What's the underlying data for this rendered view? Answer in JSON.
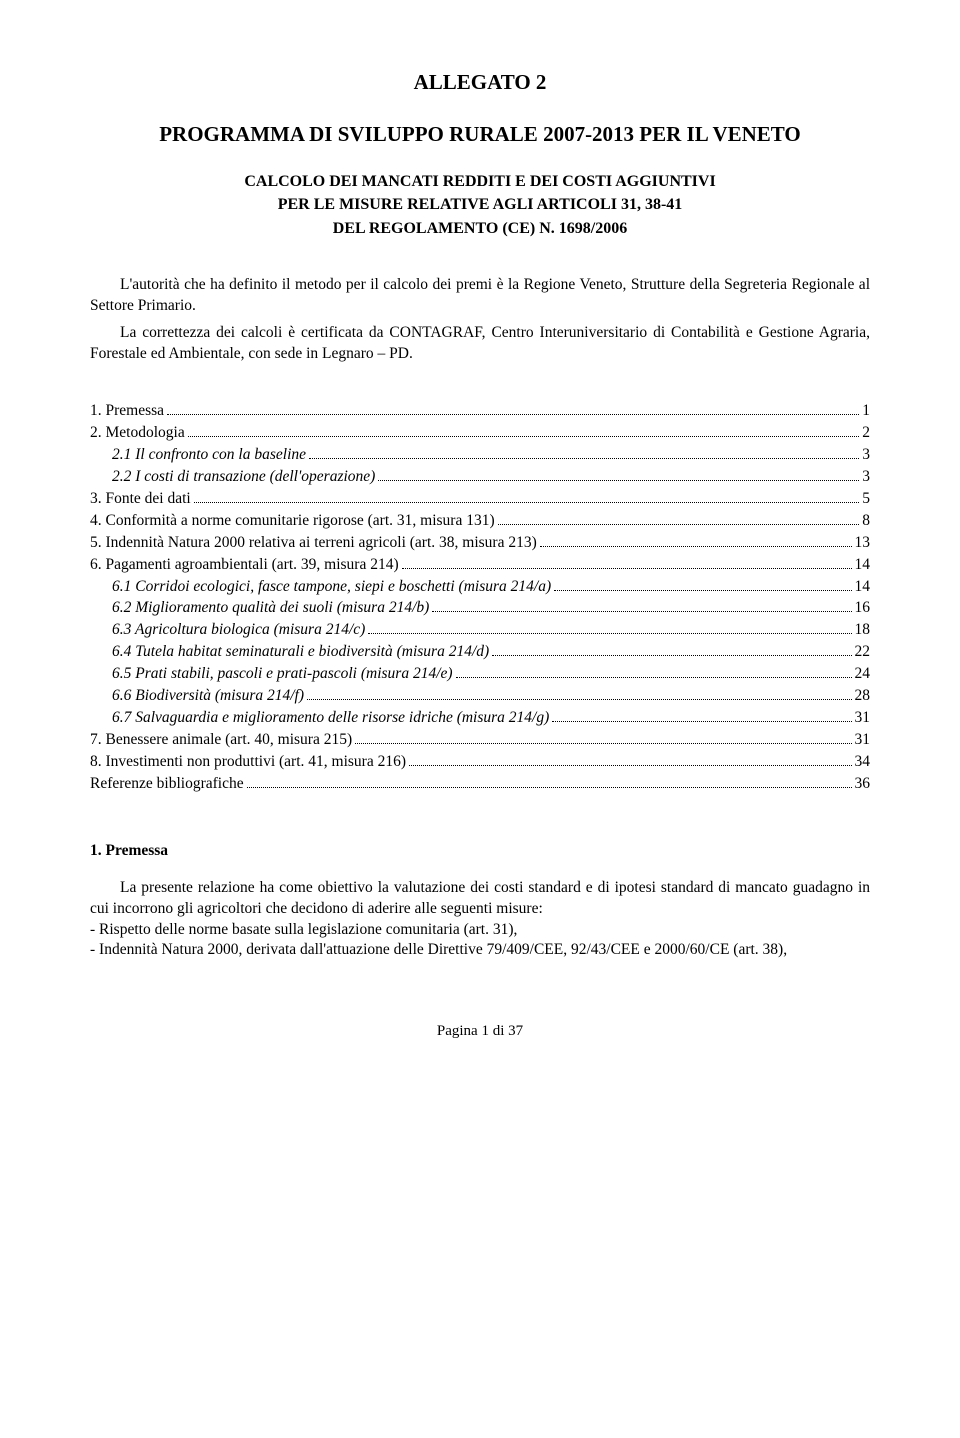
{
  "heading": {
    "allegato": "ALLEGATO 2",
    "programma": "PROGRAMMA DI SVILUPPO RURALE 2007-2013 PER IL VENETO",
    "calc_line1": "CALCOLO DEI MANCATI REDDITI E DEI COSTI AGGIUNTIVI",
    "calc_line2": "PER LE MISURE RELATIVE AGLI ARTICOLI 31, 38-41",
    "calc_line3": "DEL REGOLAMENTO (CE) N. 1698/2006"
  },
  "intro": {
    "p1": "L'autorità che ha definito il metodo per il calcolo dei premi è la Regione Veneto, Strutture della Segreteria Regionale al Settore Primario.",
    "p2": "La correttezza dei calcoli è certificata da CONTAGRAF, Centro Interuniversitario di Contabilità e Gestione Agraria, Forestale ed Ambientale, con sede in Legnaro – PD."
  },
  "toc": [
    {
      "label": "1. Premessa",
      "page": "1",
      "italic": false,
      "indent": 0
    },
    {
      "label": "2. Metodologia",
      "page": "2",
      "italic": false,
      "indent": 0
    },
    {
      "label": "2.1 Il confronto con la baseline",
      "page": "3",
      "italic": true,
      "indent": 1
    },
    {
      "label": "2.2 I costi di transazione (dell'operazione)",
      "page": "3",
      "italic": true,
      "indent": 1
    },
    {
      "label": "3. Fonte dei dati",
      "page": "5",
      "italic": false,
      "indent": 0
    },
    {
      "label": "4. Conformità a norme comunitarie rigorose (art. 31, misura 131)",
      "page": "8",
      "italic": false,
      "indent": 0
    },
    {
      "label": "5. Indennità Natura 2000 relativa ai terreni agricoli (art. 38, misura 213)",
      "page": "13",
      "italic": false,
      "indent": 0
    },
    {
      "label": "6. Pagamenti agroambientali (art. 39, misura 214)",
      "page": "14",
      "italic": false,
      "indent": 0
    },
    {
      "label": "6.1 Corridoi ecologici, fasce tampone, siepi e boschetti (misura 214/a)",
      "page": "14",
      "italic": true,
      "indent": 1
    },
    {
      "label": "6.2 Miglioramento qualità dei suoli (misura 214/b)",
      "page": "16",
      "italic": true,
      "indent": 1
    },
    {
      "label": "6.3 Agricoltura biologica (misura 214/c)",
      "page": "18",
      "italic": true,
      "indent": 1
    },
    {
      "label": "6.4 Tutela habitat seminaturali e biodiversità (misura 214/d)",
      "page": "22",
      "italic": true,
      "indent": 1
    },
    {
      "label": "6.5 Prati stabili, pascoli e prati-pascoli (misura 214/e)",
      "page": "24",
      "italic": true,
      "indent": 1
    },
    {
      "label": "6.6 Biodiversità (misura 214/f)",
      "page": "28",
      "italic": true,
      "indent": 1
    },
    {
      "label": "6.7 Salvaguardia e miglioramento delle risorse idriche (misura 214/g)",
      "page": "31",
      "italic": true,
      "indent": 1
    },
    {
      "label": "7. Benessere animale (art. 40, misura 215)",
      "page": "31",
      "italic": false,
      "indent": 0
    },
    {
      "label": "8. Investimenti non produttivi (art. 41, misura 216)",
      "page": "34",
      "italic": false,
      "indent": 0
    },
    {
      "label": "Referenze bibliografiche",
      "page": "36",
      "italic": false,
      "indent": 0
    }
  ],
  "section1": {
    "heading": "1. Premessa",
    "p1": "La presente relazione ha come obiettivo la valutazione dei costi standard e di ipotesi standard di mancato guadagno in cui incorrono gli agricoltori che decidono di aderire alle seguenti misure:",
    "b1": "- Rispetto delle norme basate sulla legislazione comunitaria (art. 31),",
    "b2": "- Indennità Natura 2000, derivata dall'attuazione delle Direttive 79/409/CEE, 92/43/CEE e 2000/60/CE (art. 38),"
  },
  "footer": "Pagina 1 di 37"
}
